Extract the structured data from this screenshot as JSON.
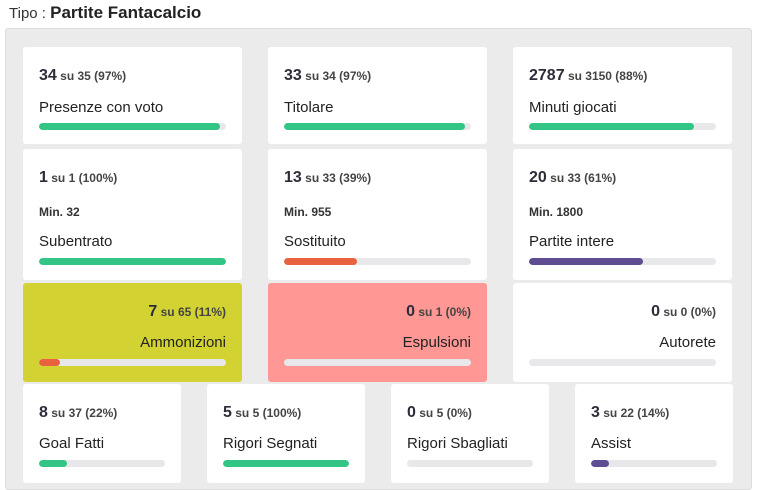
{
  "header": {
    "prefix": "Tipo :",
    "title": "Partite Fantacalcio"
  },
  "colors": {
    "green": "#33c585",
    "red": "#e9623f",
    "purple": "#5e4d91",
    "yellow_bg": "#d3d233",
    "pink_bg": "#ff9794"
  },
  "cards": [
    {
      "value": "34",
      "detail": "su 35 (97%)",
      "label": "Presenze con voto",
      "pct": 97
    },
    {
      "value": "33",
      "detail": "su 34 (97%)",
      "label": "Titolare",
      "pct": 97
    },
    {
      "value": "2787",
      "detail": "su 3150 (88%)",
      "label": "Minuti giocati",
      "pct": 88
    },
    {
      "value": "1",
      "detail": "su 1 (100%)",
      "min": "Min. 32",
      "label": "Subentrato",
      "pct": 100
    },
    {
      "value": "13",
      "detail": "su 33 (39%)",
      "min": "Min. 955",
      "label": "Sostituito",
      "pct": 39
    },
    {
      "value": "20",
      "detail": "su 33 (61%)",
      "min": "Min. 1800",
      "label": "Partite intere",
      "pct": 61
    },
    {
      "value": "7",
      "detail": "su 65 (11%)",
      "label": "Ammonizioni",
      "pct": 11
    },
    {
      "value": "0",
      "detail": "su 1 (0%)",
      "label": "Espulsioni",
      "pct": 0
    },
    {
      "value": "0",
      "detail": "su 0 (0%)",
      "label": "Autorete",
      "pct": 0
    },
    {
      "value": "8",
      "detail": "su 37 (22%)",
      "label": "Goal Fatti",
      "pct": 22
    },
    {
      "value": "5",
      "detail": "su 5 (100%)",
      "label": "Rigori Segnati",
      "pct": 100
    },
    {
      "value": "0",
      "detail": "su 5 (0%)",
      "label": "Rigori Sbagliati",
      "pct": 0
    },
    {
      "value": "3",
      "detail": "su 22 (14%)",
      "label": "Assist",
      "pct": 14
    }
  ]
}
